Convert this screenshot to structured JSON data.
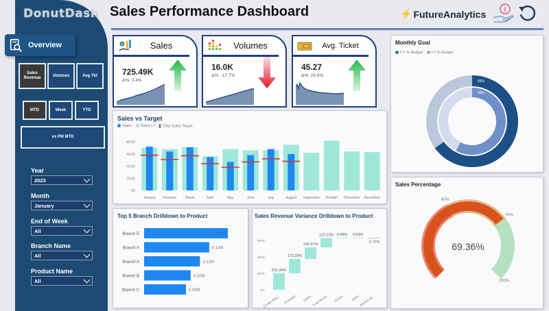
{
  "sidebar": {
    "logo": "DonutDash",
    "overview_label": "Overview",
    "metric_buttons": [
      {
        "label": "Sales Revenue",
        "active": true
      },
      {
        "label": "Volumes",
        "active": false
      },
      {
        "label": "Avg Tkt",
        "active": false
      }
    ],
    "period_buttons": [
      {
        "label": "MTD",
        "active": true
      },
      {
        "label": "Week",
        "active": false
      },
      {
        "label": "YTD",
        "active": false
      }
    ],
    "compare_button": "vs PM MTD",
    "slicers": [
      {
        "label": "Year",
        "value": "2023"
      },
      {
        "label": "Month",
        "value": "January"
      },
      {
        "label": "End of Week",
        "value": "All"
      },
      {
        "label": "Branch Name",
        "value": "All"
      },
      {
        "label": "Product Name",
        "value": "All"
      }
    ]
  },
  "header": {
    "title": "Sales Performance Dashboard",
    "brand": "FutureAnalytics",
    "icons": [
      "info-hand-icon",
      "reset-icon"
    ]
  },
  "kpis": [
    {
      "label": "Sales",
      "value": "725.49K",
      "delta": "Δ%: 3.4%",
      "trend": "up",
      "icon": "sales-chart-icon"
    },
    {
      "label": "Volumes",
      "value": "16.0K",
      "delta": "Δ%: -17.7%",
      "trend": "down",
      "icon": "volume-bars-icon"
    },
    {
      "label": "Avg. Ticket",
      "value": "45.27",
      "delta": "Δ%: 25.6%",
      "trend": "up",
      "icon": "ticket-icon"
    }
  ],
  "colors": {
    "sidebar": "#1c4a72",
    "sales": "#1e88f0",
    "sales_ly": "#9fe8d9",
    "target": "#d1343f",
    "cy_budget": "#1c4f86",
    "ly_budget": "#6f8fc8",
    "gauge_low": "#d9521c",
    "gauge_mid": "#d8b27e",
    "gauge_high": "#a9dcb6"
  },
  "chart_data": [
    {
      "type": "bar",
      "title": "Sales vs Target",
      "legend": [
        "Sales",
        "Sales LY",
        "Total Sales Target"
      ],
      "categories": [
        "January",
        "February",
        "March",
        "April",
        "May",
        "June",
        "July",
        "August",
        "September",
        "October",
        "November",
        "December"
      ],
      "yticks": [
        "0K",
        "200K",
        "400K",
        "600K",
        "800K"
      ],
      "ylim": [
        0,
        800000
      ],
      "series": [
        {
          "name": "Sales",
          "values": [
            720000,
            640000,
            710000,
            550000,
            470000,
            580000,
            680000,
            600000,
            null,
            null,
            null,
            null
          ]
        },
        {
          "name": "Sales LY",
          "values": [
            700000,
            680000,
            710000,
            560000,
            680000,
            660000,
            660000,
            750000,
            620000,
            820000,
            640000,
            630000
          ]
        },
        {
          "name": "Total Sales Target",
          "values": [
            580000,
            510000,
            570000,
            440000,
            380000,
            470000,
            520000,
            480000,
            null,
            null,
            null,
            null
          ]
        }
      ]
    },
    {
      "type": "donut",
      "title": "Monthly Goal",
      "legend": [
        "CY % Budget",
        "LY % Budget"
      ],
      "series": [
        {
          "name": "CY % Budget",
          "value": 65,
          "label": "65%"
        },
        {
          "name": "LY % Budget",
          "value": 58,
          "label": "58%"
        }
      ]
    },
    {
      "type": "gauge",
      "title": "Sales Percentage",
      "value": 69.36,
      "value_label": "69.36%",
      "bands": [
        {
          "from": 0,
          "to": 40,
          "label": "40%"
        },
        {
          "from": 40,
          "to": 70,
          "label": "70%"
        },
        {
          "from": 70,
          "to": 100,
          "label": "100%"
        }
      ]
    },
    {
      "type": "bar",
      "orientation": "horizontal",
      "title": "Top 5 Branch Drilldown to Product",
      "categories": [
        "Branch E",
        "Branch F",
        "Branch A",
        "Branch B",
        "Branch C"
      ],
      "values": [
        0.18,
        0.14,
        0.12,
        0.1,
        0.09
      ],
      "labels": [
        "0.18M",
        "0.14M",
        "0.12M",
        "0.10M",
        "0.09M"
      ],
      "unit": "M"
    },
    {
      "type": "waterfall",
      "title": "Sales Revenue Variance Drilldown to Product",
      "categories": [
        "Combo Mea...",
        "Croissant",
        "Drinks",
        "Hash Brown",
        "Donuts",
        "Salad",
        "Anytime Br..."
      ],
      "values": [
        201.26,
        173.29,
        140.57,
        113.13,
        4.98,
        0.03,
        -2.71
      ],
      "labels": [
        "201.26%",
        "173.29%",
        "140.57%",
        "113.13%",
        "4.98%",
        "0.03%",
        "-2.71%"
      ],
      "yticks": [
        "0%",
        "200%",
        "400%",
        "600%"
      ],
      "ylim": [
        0,
        650
      ]
    }
  ]
}
